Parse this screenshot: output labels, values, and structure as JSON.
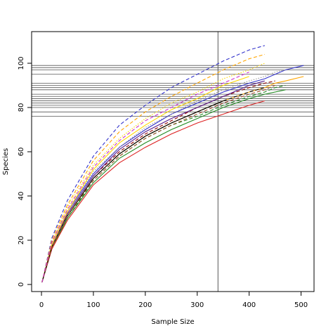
{
  "chart_data": {
    "type": "line",
    "x_label": "Sample Size",
    "y_label": "Species",
    "x": [
      1,
      20,
      50,
      100,
      150,
      200,
      250,
      300,
      350,
      400,
      430,
      450,
      470,
      505
    ],
    "series": [
      {
        "color": "#3333cc",
        "dash": "dashed",
        "values": [
          1,
          21,
          38,
          58,
          72,
          81,
          89,
          95,
          101,
          106,
          108,
          null,
          null,
          null
        ]
      },
      {
        "color": "#ffa500",
        "dash": "dashed",
        "values": [
          1,
          20,
          36,
          56,
          69,
          78,
          85,
          91,
          97,
          102,
          104,
          null,
          null,
          null
        ]
      },
      {
        "color": "#ffd700",
        "dash": "dotted",
        "values": [
          1,
          19,
          35,
          54,
          66,
          75,
          82,
          87,
          93,
          97,
          100,
          null,
          null,
          null
        ]
      },
      {
        "color": "#3333cc",
        "dash": "solid",
        "values": [
          1,
          18,
          33,
          50,
          62,
          70,
          77,
          82,
          87,
          91,
          93,
          95,
          97,
          99
        ]
      },
      {
        "color": "#ffa500",
        "dash": "solid",
        "values": [
          1,
          17,
          31,
          48,
          59,
          67,
          73,
          78,
          83,
          87,
          89,
          91,
          92,
          94
        ]
      },
      {
        "color": "#000000",
        "dash": "dashed",
        "values": [
          1,
          17,
          31,
          48,
          59,
          67,
          73,
          78,
          83,
          87,
          89,
          null,
          null,
          null
        ]
      },
      {
        "color": "#8b0000",
        "dash": "dashed",
        "values": [
          1,
          17,
          32,
          49,
          60,
          68,
          74,
          80,
          85,
          89,
          91,
          92,
          null,
          null
        ]
      },
      {
        "color": "#228b22",
        "dash": "solid",
        "values": [
          1,
          16,
          30,
          46,
          57,
          64,
          70,
          75,
          80,
          84,
          86,
          87,
          88,
          null
        ]
      },
      {
        "color": "#dd2222",
        "dash": "solid",
        "values": [
          1,
          16,
          29,
          45,
          55,
          62,
          68,
          73,
          77,
          81,
          83,
          null,
          null,
          null
        ]
      },
      {
        "color": "#551a8b",
        "dash": "solid",
        "values": [
          1,
          17,
          32,
          49,
          61,
          69,
          75,
          80,
          85,
          90,
          92,
          null,
          null,
          null
        ]
      },
      {
        "color": "#228b22",
        "dash": "dashed",
        "values": [
          1,
          17,
          30,
          47,
          58,
          66,
          72,
          76,
          81,
          85,
          87,
          89,
          90,
          null
        ]
      },
      {
        "color": "#999999",
        "dash": "dotted",
        "values": [
          1,
          18,
          33,
          51,
          62,
          71,
          77,
          83,
          88,
          92,
          94,
          96,
          97,
          null
        ]
      },
      {
        "color": "#ffd700",
        "dash": "solid",
        "values": [
          1,
          18,
          33,
          52,
          64,
          72,
          79,
          84,
          90,
          94,
          null,
          null,
          null,
          null
        ]
      },
      {
        "color": "#000000",
        "dash": "solid",
        "values": [
          1,
          17,
          31,
          48,
          59,
          67,
          73,
          78,
          83,
          null,
          null,
          null,
          null,
          null
        ]
      },
      {
        "color": "#a0522d",
        "dash": "dashed",
        "values": [
          1,
          17,
          31,
          47,
          58,
          66,
          72,
          77,
          82,
          86,
          88,
          90,
          null,
          null
        ]
      },
      {
        "color": "#cc33cc",
        "dash": "dashed",
        "values": [
          1,
          19,
          34,
          53,
          65,
          74,
          80,
          86,
          91,
          96,
          null,
          null,
          null,
          null
        ]
      }
    ],
    "hlines": [
      76,
      78,
      80,
      81,
      82,
      83,
      84,
      85,
      86,
      88,
      89,
      90,
      91,
      95,
      97,
      98,
      99
    ],
    "vline": 340,
    "xlim": [
      -19,
      525
    ],
    "ylim": [
      -3.2,
      114.3
    ],
    "xticks": [
      0,
      100,
      200,
      300,
      400,
      500
    ],
    "yticks": [
      0,
      20,
      40,
      60,
      80,
      100
    ]
  }
}
